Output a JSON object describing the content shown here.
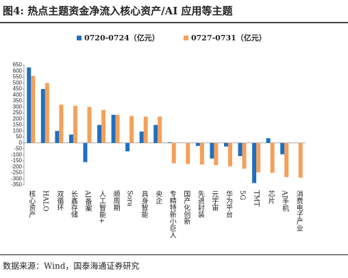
{
  "chart_data": {
    "type": "bar",
    "title": "图4:  热点主题资金净流入核心资产/AI 应用等主题",
    "source": "数据来源：Wind，国泰海通证券研究",
    "categories": [
      "核心资产",
      "HALO",
      "双循环",
      "长鑫存储",
      "AI备案",
      "人工智能+",
      "顺周期",
      "Sora",
      "具身智能",
      "央企",
      "专精特新小巨人",
      "国产化创新",
      "先进封装",
      "元宇宙",
      "华为平台",
      "5G",
      "TMT",
      "芯片",
      "AI手机",
      "消费电子产业"
    ],
    "series": [
      {
        "name": "0720-0724（亿元）",
        "color": "#1f6fc1",
        "values": [
          630,
          450,
          100,
          70,
          -160,
          150,
          235,
          -70,
          95,
          150,
          5,
          0,
          -25,
          -130,
          -30,
          -110,
          -335,
          40,
          -95,
          0
        ]
      },
      {
        "name": "0727-0731（亿元）",
        "color": "#f5a05a",
        "values": [
          560,
          500,
          320,
          310,
          300,
          275,
          235,
          225,
          220,
          220,
          -170,
          -175,
          -180,
          -185,
          -195,
          -215,
          -245,
          -250,
          -285,
          -290
        ]
      }
    ],
    "ylim": [
      -350,
      650
    ],
    "yticks": [
      -350,
      -300,
      -250,
      -200,
      -150,
      -100,
      -50,
      0,
      50,
      100,
      150,
      200,
      250,
      300,
      350,
      400,
      450,
      500,
      550,
      600,
      650
    ],
    "grid": false
  }
}
